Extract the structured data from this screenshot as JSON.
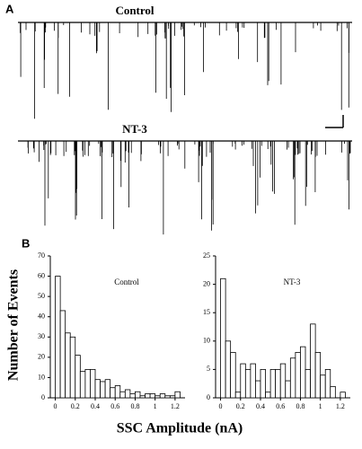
{
  "shared_labels": {
    "y": "Number of Events",
    "x": "SSC Amplitude (nA)"
  },
  "chart_data": [
    {
      "type": "trace",
      "panel": "A",
      "title": "Control"
    },
    {
      "type": "trace",
      "title": "NT-3"
    },
    {
      "type": "histogram",
      "panel": "B",
      "annotation": "Control",
      "bins": [
        0,
        0.05,
        0.1,
        0.15,
        0.2,
        0.25,
        0.3,
        0.35,
        0.4,
        0.45,
        0.5,
        0.55,
        0.6,
        0.65,
        0.7,
        0.75,
        0.8,
        0.85,
        0.9,
        0.95,
        1,
        1.05,
        1.1,
        1.15,
        1.2,
        1.25,
        1.3
      ],
      "values": [
        60,
        43,
        32,
        30,
        21,
        13,
        14,
        14,
        9,
        8,
        9,
        5,
        6,
        3,
        4,
        2,
        3,
        1,
        2,
        2,
        1,
        2,
        1,
        1,
        3,
        0
      ],
      "xlim": [
        -0.05,
        1.3
      ],
      "ylim": [
        0,
        70
      ],
      "xticks": [
        0,
        0.2,
        0.4,
        0.6,
        0.8,
        1,
        1.2
      ],
      "yticks": [
        0,
        10,
        20,
        30,
        40,
        50,
        60,
        70
      ],
      "color": "#ffffff"
    },
    {
      "type": "histogram",
      "annotation": "NT-3",
      "bins": [
        0,
        0.05,
        0.1,
        0.15,
        0.2,
        0.25,
        0.3,
        0.35,
        0.4,
        0.45,
        0.5,
        0.55,
        0.6,
        0.65,
        0.7,
        0.75,
        0.8,
        0.85,
        0.9,
        0.95,
        1,
        1.05,
        1.1,
        1.15,
        1.2,
        1.25,
        1.3
      ],
      "values": [
        21,
        10,
        8,
        1,
        6,
        5,
        6,
        3,
        5,
        1,
        5,
        5,
        6,
        3,
        7,
        8,
        9,
        5,
        13,
        8,
        4,
        5,
        2,
        0,
        1,
        0
      ],
      "xlim": [
        -0.05,
        1.3
      ],
      "ylim": [
        0,
        25
      ],
      "xticks": [
        0,
        0.2,
        0.4,
        0.6,
        0.8,
        1,
        1.2
      ],
      "yticks": [
        0,
        5,
        10,
        15,
        20,
        25
      ],
      "color": "#ffffff"
    }
  ]
}
